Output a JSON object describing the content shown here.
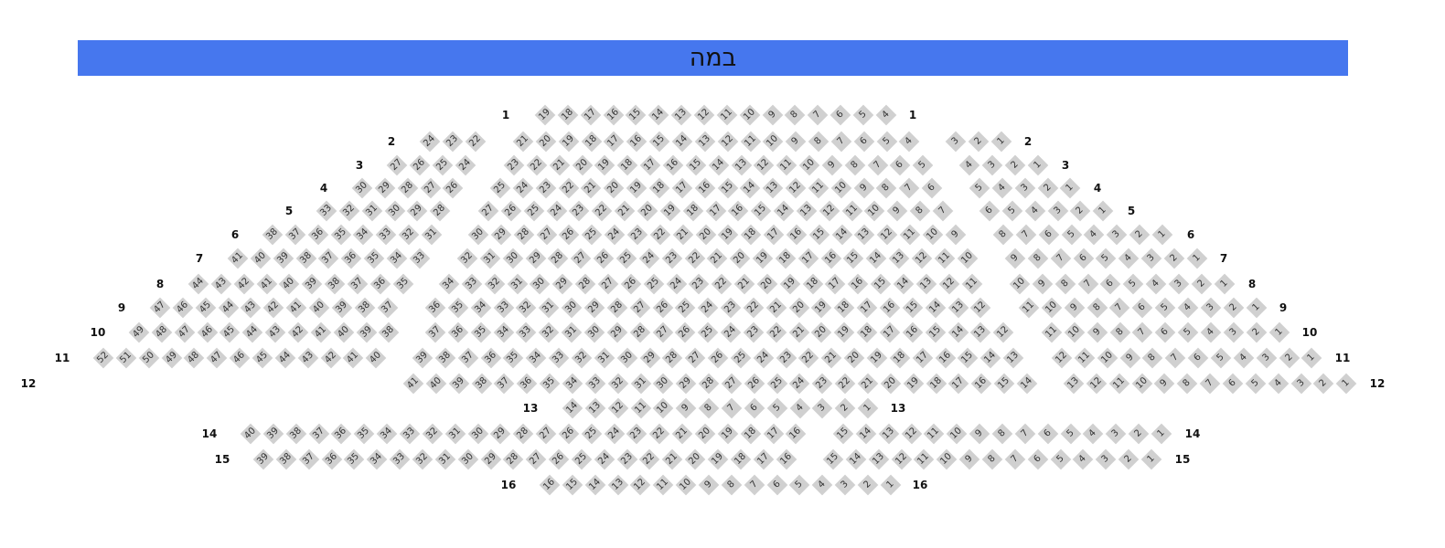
{
  "stage": {
    "label": "במה",
    "color": "#4677ee"
  },
  "seat_color": "#d0d0d0",
  "rows": [
    {
      "label": "1",
      "blocks": [
        [
          19,
          4
        ]
      ]
    },
    {
      "label": "2",
      "blocks": [
        [
          24,
          22
        ],
        [
          21,
          4
        ],
        [
          3,
          1
        ]
      ]
    },
    {
      "label": "3",
      "blocks": [
        [
          27,
          24
        ],
        [
          23,
          5
        ],
        [
          4,
          1
        ]
      ]
    },
    {
      "label": "4",
      "blocks": [
        [
          30,
          26
        ],
        [
          25,
          6
        ],
        [
          5,
          1
        ]
      ]
    },
    {
      "label": "5",
      "blocks": [
        [
          33,
          28
        ],
        [
          27,
          7
        ],
        [
          6,
          1
        ]
      ]
    },
    {
      "label": "6",
      "blocks": [
        [
          38,
          31
        ],
        [
          30,
          9
        ],
        [
          8,
          1
        ]
      ]
    },
    {
      "label": "7",
      "blocks": [
        [
          41,
          33
        ],
        [
          32,
          10
        ],
        [
          9,
          1
        ]
      ]
    },
    {
      "label": "8",
      "blocks": [
        [
          44,
          35
        ],
        [
          34,
          11
        ],
        [
          10,
          1
        ]
      ]
    },
    {
      "label": "9",
      "blocks": [
        [
          47,
          37
        ],
        [
          36,
          12
        ],
        [
          11,
          1
        ]
      ]
    },
    {
      "label": "10",
      "blocks": [
        [
          49,
          38
        ],
        [
          37,
          12
        ],
        [
          11,
          1
        ]
      ]
    },
    {
      "label": "11",
      "blocks": [
        [
          52,
          40
        ],
        [
          39,
          13
        ],
        [
          12,
          1
        ]
      ]
    },
    {
      "label": "12",
      "blocks": [
        [
          41,
          14
        ],
        [
          13,
          1
        ]
      ]
    },
    {
      "label": "13",
      "blocks": [
        [
          14,
          1
        ]
      ]
    },
    {
      "label": "14",
      "blocks": [
        [
          40,
          16
        ],
        [
          15,
          1
        ]
      ]
    },
    {
      "label": "15",
      "blocks": [
        [
          39,
          16
        ],
        [
          15,
          1
        ]
      ]
    },
    {
      "label": "16",
      "blocks": [
        [
          16,
          1
        ]
      ]
    }
  ]
}
